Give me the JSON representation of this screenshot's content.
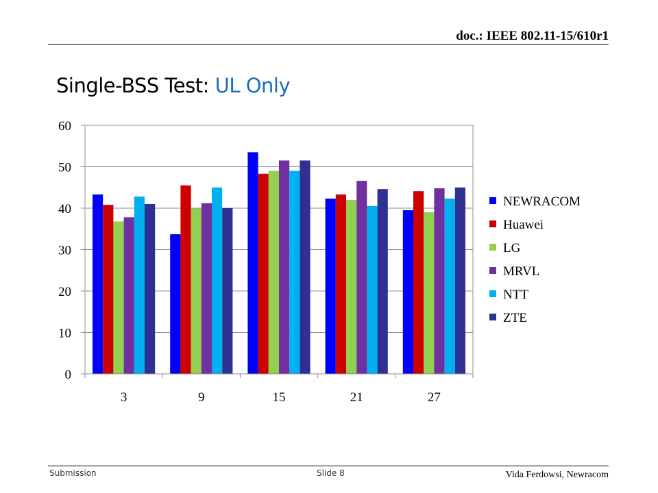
{
  "header": {
    "doc_id": "doc.: IEEE 802.11-15/610r1"
  },
  "slide": {
    "title_main": "Single-BSS Test: ",
    "title_accent": "UL Only"
  },
  "footer": {
    "left": "Submission",
    "middle": "Slide 8",
    "right": "Vida Ferdowsi, Newracom"
  },
  "colors": {
    "title_accent": "#1a6fc2"
  },
  "chart_data": {
    "type": "bar",
    "categories": [
      "3",
      "9",
      "15",
      "21",
      "27"
    ],
    "ylim": [
      0,
      60
    ],
    "yticks": [
      0,
      10,
      20,
      30,
      40,
      50,
      60
    ],
    "grid": true,
    "legend_position": "right",
    "series": [
      {
        "name": "NEWRACOM",
        "color": "#0000ff",
        "values": [
          43.3,
          33.7,
          53.5,
          42.3,
          39.5
        ]
      },
      {
        "name": "Huawei",
        "color": "#cc0000",
        "values": [
          40.8,
          45.5,
          48.3,
          43.3,
          44.1
        ]
      },
      {
        "name": "LG",
        "color": "#92d050",
        "values": [
          36.8,
          39.9,
          49.0,
          42.0,
          39.0
        ]
      },
      {
        "name": "MRVL",
        "color": "#7030a0",
        "values": [
          37.8,
          41.2,
          51.5,
          46.6,
          44.8
        ]
      },
      {
        "name": "NTT",
        "color": "#00b0f0",
        "values": [
          42.8,
          45.0,
          49.0,
          40.5,
          42.3
        ]
      },
      {
        "name": "ZTE",
        "color": "#2e3192",
        "values": [
          41.0,
          40.0,
          51.5,
          44.6,
          45.0
        ]
      }
    ]
  }
}
